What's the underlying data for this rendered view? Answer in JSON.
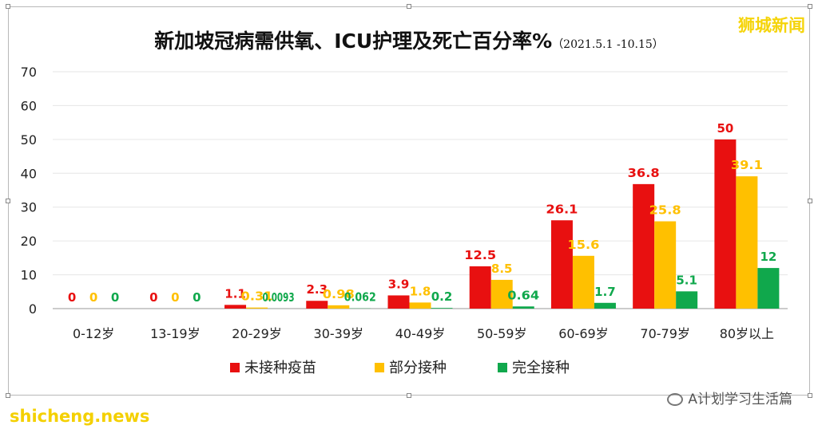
{
  "corner_tag": "狮城新闻",
  "footer": {
    "left_watermark": "shicheng.news",
    "right_watermark": "A计划学习生活篇"
  },
  "chart_data": {
    "type": "bar",
    "title": "新加坡冠病需供氧、ICU护理及死亡百分率%",
    "subtitle": "（2021.5.1 -10.15）",
    "categories": [
      "0-12岁",
      "13-19岁",
      "20-29岁",
      "30-39岁",
      "40-49岁",
      "50-59岁",
      "60-69岁",
      "70-79岁",
      "80岁以上"
    ],
    "y_ticks": [
      "0",
      "10",
      "20",
      "30",
      "40",
      "50",
      "60",
      "70"
    ],
    "ylim": [
      0,
      70
    ],
    "grid": true,
    "legend_position": "bottom",
    "series": [
      {
        "name": "未接种疫苗",
        "color": "#e81010",
        "values": [
          0,
          0,
          1.1,
          2.3,
          3.9,
          12.5,
          26.1,
          36.8,
          50
        ],
        "labels": [
          "0",
          "0",
          "1.1",
          "2.3",
          "3.9",
          "12.5",
          "26.1",
          "36.8",
          "50"
        ]
      },
      {
        "name": "部分接种",
        "color": "#ffc000",
        "values": [
          0,
          0,
          0.31,
          0.98,
          1.8,
          8.5,
          15.6,
          25.8,
          39.1
        ],
        "labels": [
          "0",
          "0",
          "0.31",
          "0.98",
          "1.8",
          "8.5",
          "15.6",
          "25.8",
          "39.1"
        ]
      },
      {
        "name": "完全接种",
        "color": "#10a84c",
        "values": [
          0,
          0,
          0.0093,
          0.062,
          0.2,
          0.64,
          1.7,
          5.1,
          12
        ],
        "labels": [
          "0",
          "0",
          "0.0093",
          "0.062",
          "0.2",
          "0.64",
          "1.7",
          "5.1",
          "12"
        ]
      }
    ]
  }
}
